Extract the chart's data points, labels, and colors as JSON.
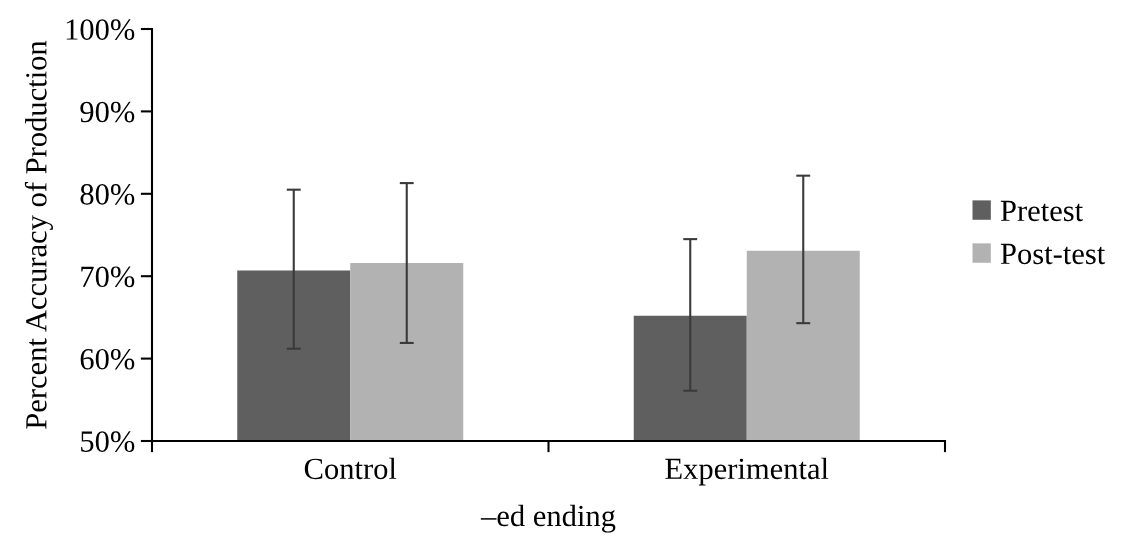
{
  "chart_data": {
    "type": "bar",
    "xlabel": "–ed ending",
    "ylabel": "Percent Accuracy of Production",
    "categories": [
      "Control",
      "Experimental"
    ],
    "series": [
      {
        "name": "Pretest",
        "color": "#5f5f5f",
        "values": [
          70.7,
          65.2
        ],
        "errors": [
          [
            61.2,
            80.5
          ],
          [
            56.1,
            74.5
          ]
        ]
      },
      {
        "name": "Post-test",
        "color": "#b2b2b2",
        "values": [
          71.6,
          73.1
        ],
        "errors": [
          [
            61.9,
            81.3
          ],
          [
            64.3,
            82.2
          ]
        ]
      }
    ],
    "ylim": [
      50,
      100
    ],
    "yticks": [
      {
        "value": 50,
        "label": "50%"
      },
      {
        "value": 60,
        "label": "60%"
      },
      {
        "value": 70,
        "label": "70%"
      },
      {
        "value": 80,
        "label": "80%"
      },
      {
        "value": 90,
        "label": "90%"
      },
      {
        "value": 100,
        "label": "100%"
      }
    ],
    "grid": false,
    "legend": "right"
  }
}
